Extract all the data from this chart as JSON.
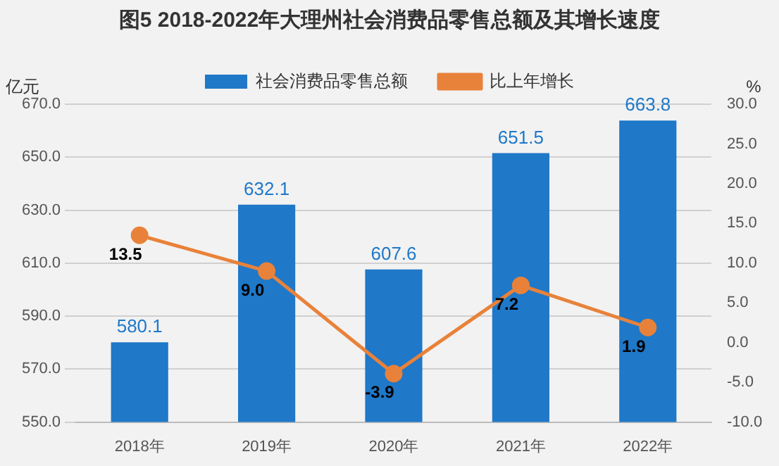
{
  "chart_data": {
    "type": "bar",
    "title": "图5 2018-2022年大理州社会消费品零售总额及其增长速度",
    "ylabel": "亿元",
    "y2label": "%",
    "categories": [
      "2018年",
      "2019年",
      "2020年",
      "2021年",
      "2022年"
    ],
    "series": [
      {
        "name": "社会消费品零售总额",
        "color": "#1f78c8",
        "values": [
          580.1,
          632.1,
          607.6,
          651.5,
          663.8
        ],
        "value_labels": [
          "580.1",
          "632.1",
          "607.6",
          "651.5",
          "663.8"
        ]
      },
      {
        "name": "比上年增长",
        "type": "line",
        "axis": "y2",
        "color": "#e8823a",
        "values": [
          13.5,
          9.0,
          -3.9,
          7.2,
          1.9
        ],
        "value_labels": [
          "13.5",
          "9.0",
          "-3.9",
          "7.2",
          "1.9"
        ]
      }
    ],
    "ylim": [
      550,
      670
    ],
    "yticks": [
      {
        "value": 550,
        "label": "550.0"
      },
      {
        "value": 570,
        "label": "570.0"
      },
      {
        "value": 590,
        "label": "590.0"
      },
      {
        "value": 610,
        "label": "610.0"
      },
      {
        "value": 630,
        "label": "630.0"
      },
      {
        "value": 650,
        "label": "650.0"
      },
      {
        "value": 670,
        "label": "670.0"
      }
    ],
    "y2lim": [
      -10,
      30
    ],
    "y2ticks": [
      {
        "value": -10,
        "label": "-10.0"
      },
      {
        "value": -5,
        "label": "-5.0"
      },
      {
        "value": 0,
        "label": "0.0"
      },
      {
        "value": 5,
        "label": "5.0"
      },
      {
        "value": 10,
        "label": "10.0"
      },
      {
        "value": 15,
        "label": "15.0"
      },
      {
        "value": 20,
        "label": "20.0"
      },
      {
        "value": 25,
        "label": "25.0"
      },
      {
        "value": 30,
        "label": "30.0"
      }
    ],
    "grid": "y",
    "legend": "top",
    "marker": "circle",
    "line_style": "solid"
  }
}
